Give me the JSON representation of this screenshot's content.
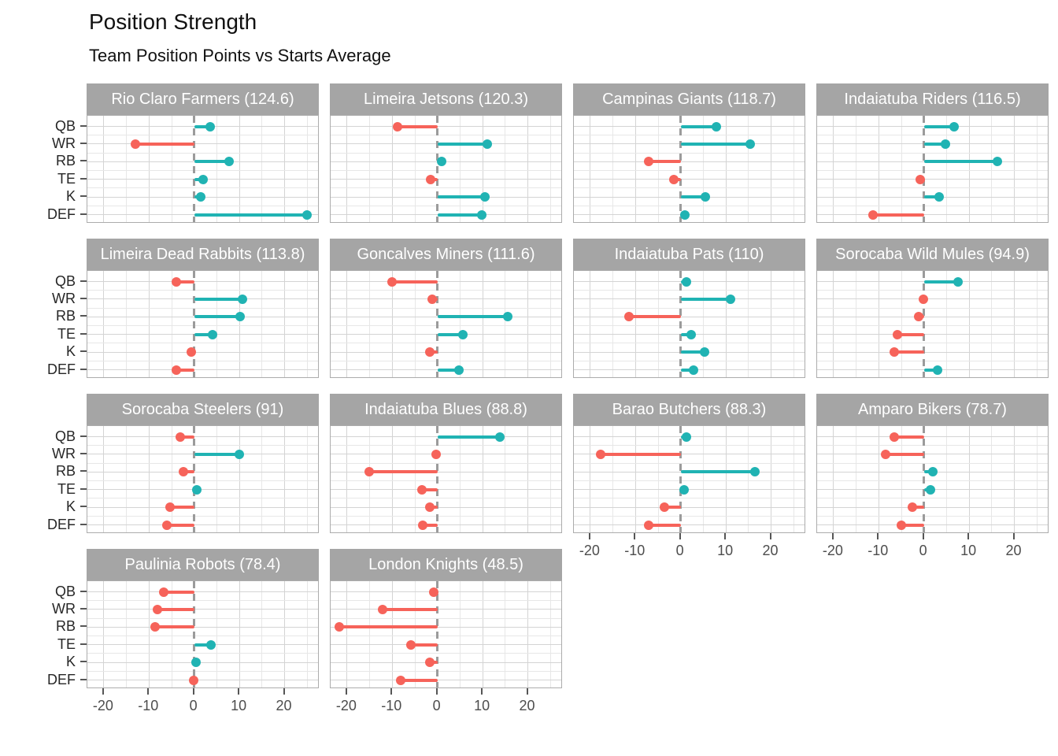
{
  "chart_data": {
    "type": "lollipop",
    "title": "Position Strength",
    "subtitle": "Team Position Points vs Starts Average",
    "positions": [
      "QB",
      "WR",
      "RB",
      "TE",
      "K",
      "DEF"
    ],
    "x_tick_labels": [
      "-20",
      "-10",
      "0",
      "10",
      "20"
    ],
    "x_tick_values": [
      -20,
      -10,
      0,
      10,
      20
    ],
    "x_minor_values": [
      -15,
      -5,
      5,
      15,
      25
    ],
    "xlim": [
      -23.7,
      27.7
    ],
    "grid": true,
    "legend": "none",
    "colors": {
      "positive": "#20b3b3",
      "negative": "#f6635a",
      "zero_line": "#9b9b9b",
      "strip_bg": "#a5a5a5",
      "strip_text": "#ffffff"
    },
    "facets": [
      {
        "label": "Rio Claro Farmers (124.6)",
        "team": "Rio Claro Farmers",
        "total": 124.6,
        "values": [
          3.5,
          -13.1,
          7.7,
          2.0,
          1.4,
          24.9
        ]
      },
      {
        "label": "Limeira Jetsons (120.3)",
        "team": "Limeira Jetsons",
        "total": 120.3,
        "values": [
          -8.8,
          11.0,
          0.9,
          -1.6,
          10.5,
          9.8
        ]
      },
      {
        "label": "Campinas Giants (118.7)",
        "team": "Campinas Giants",
        "total": 118.7,
        "values": [
          7.9,
          15.3,
          -7.1,
          -1.6,
          5.4,
          1.0
        ]
      },
      {
        "label": "Indaiatuba Riders (116.5)",
        "team": "Indaiatuba Riders",
        "total": 116.5,
        "values": [
          6.6,
          4.7,
          16.3,
          -0.9,
          3.3,
          -11.2
        ]
      },
      {
        "label": "Limeira Dead Rabbits (113.8)",
        "team": "Limeira Dead Rabbits",
        "total": 113.8,
        "values": [
          -4.0,
          10.6,
          10.2,
          4.0,
          -0.6,
          -4.0
        ]
      },
      {
        "label": "Goncalves Miners (111.6)",
        "team": "Goncalves Miners",
        "total": 111.6,
        "values": [
          -10.1,
          -1.1,
          15.5,
          5.6,
          -1.7,
          4.8
        ]
      },
      {
        "label": "Indaiatuba Pats (110)",
        "team": "Indaiatuba Pats",
        "total": 110,
        "values": [
          1.3,
          11.1,
          -11.4,
          2.4,
          5.3,
          2.9
        ]
      },
      {
        "label": "Sorocaba Wild Mules (94.9)",
        "team": "Sorocaba Wild Mules",
        "total": 94.9,
        "values": [
          7.6,
          -0.1,
          -1.2,
          -5.9,
          -6.5,
          3.0
        ]
      },
      {
        "label": "Sorocaba Steelers (91)",
        "team": "Sorocaba Steelers",
        "total": 91,
        "values": [
          -3.1,
          9.9,
          -2.3,
          0.6,
          -5.4,
          -6.1
        ]
      },
      {
        "label": "Indaiatuba Blues (88.8)",
        "team": "Indaiatuba Blues",
        "total": 88.8,
        "values": [
          13.9,
          -0.3,
          -15.1,
          -3.4,
          -1.7,
          -3.2
        ]
      },
      {
        "label": "Barao Butchers (88.3)",
        "team": "Barao Butchers",
        "total": 88.3,
        "values": [
          1.3,
          -17.7,
          16.4,
          0.8,
          -3.6,
          -7.1
        ]
      },
      {
        "label": "Amparo Bikers (78.7)",
        "team": "Amparo Bikers",
        "total": 78.7,
        "values": [
          -6.5,
          -8.4,
          1.9,
          1.4,
          -2.6,
          -5.0
        ]
      },
      {
        "label": "Paulinia Robots (78.4)",
        "team": "Paulinia Robots",
        "total": 78.4,
        "values": [
          -6.7,
          -8.2,
          -8.6,
          3.7,
          0.4,
          -0.1
        ]
      },
      {
        "label": "London Knights (48.5)",
        "team": "London Knights",
        "total": 48.5,
        "values": [
          -0.8,
          -12.1,
          -21.7,
          -5.9,
          -1.7,
          -8.1
        ]
      }
    ]
  }
}
